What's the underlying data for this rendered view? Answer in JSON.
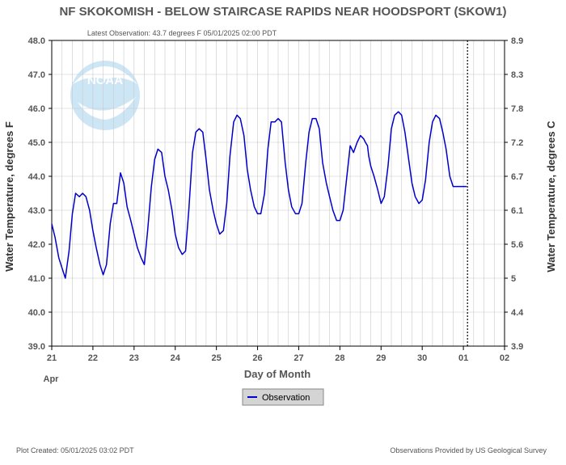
{
  "chart_data": {
    "type": "line",
    "title": "NF SKOKOMISH - BELOW STAIRCASE RAPIDS NEAR HOODSPORT  (SKOW1)",
    "subtitle": "Latest Observation: 43.7 degrees F  05/01/2025 02:00 PDT",
    "xlabel": "Day of Month",
    "ylabel_left": "Water Temperature, degrees F",
    "ylabel_right": "Water Temperature, degrees C",
    "xlim": [
      21,
      32
    ],
    "ylim": [
      39.0,
      48.0
    ],
    "x_ticks": [
      "21",
      "22",
      "23",
      "24",
      "25",
      "26",
      "27",
      "28",
      "29",
      "30",
      "01",
      "02"
    ],
    "x_month_label": "Apr",
    "y_ticks_left": [
      "39.0",
      "40.0",
      "41.0",
      "42.0",
      "43.0",
      "44.0",
      "45.0",
      "46.0",
      "47.0",
      "48.0"
    ],
    "y_ticks_right": [
      {
        "f": 39.0,
        "label": "3.9"
      },
      {
        "f": 40.0,
        "label": "4.4"
      },
      {
        "f": 41.0,
        "label": "5"
      },
      {
        "f": 42.0,
        "label": "5.6"
      },
      {
        "f": 43.0,
        "label": "6.1"
      },
      {
        "f": 44.0,
        "label": "6.7"
      },
      {
        "f": 45.0,
        "label": "7.2"
      },
      {
        "f": 46.0,
        "label": "7.8"
      },
      {
        "f": 47.0,
        "label": "8.3"
      },
      {
        "f": 48.0,
        "label": "8.9"
      }
    ],
    "grid": true,
    "legend_position": "bottom-center",
    "current_time_x": 31.1,
    "series": [
      {
        "name": "Observation",
        "color": "#0000cc",
        "x": [
          21.0,
          21.08,
          21.17,
          21.25,
          21.33,
          21.42,
          21.5,
          21.58,
          21.67,
          21.75,
          21.83,
          21.92,
          22.0,
          22.08,
          22.17,
          22.25,
          22.33,
          22.42,
          22.5,
          22.58,
          22.67,
          22.75,
          22.83,
          22.92,
          23.0,
          23.08,
          23.17,
          23.25,
          23.33,
          23.42,
          23.5,
          23.58,
          23.67,
          23.75,
          23.83,
          23.92,
          24.0,
          24.08,
          24.17,
          24.25,
          24.33,
          24.42,
          24.5,
          24.58,
          24.67,
          24.75,
          24.83,
          24.92,
          25.0,
          25.08,
          25.17,
          25.25,
          25.33,
          25.42,
          25.5,
          25.58,
          25.67,
          25.75,
          25.83,
          25.92,
          26.0,
          26.08,
          26.17,
          26.25,
          26.33,
          26.42,
          26.5,
          26.58,
          26.67,
          26.75,
          26.83,
          26.92,
          27.0,
          27.08,
          27.17,
          27.25,
          27.33,
          27.42,
          27.5,
          27.58,
          27.67,
          27.75,
          27.83,
          27.92,
          28.0,
          28.08,
          28.17,
          28.25,
          28.33,
          28.42,
          28.5,
          28.58,
          28.62,
          28.67,
          28.7,
          28.75,
          28.83,
          28.92,
          29.0,
          29.08,
          29.17,
          29.25,
          29.33,
          29.42,
          29.5,
          29.58,
          29.67,
          29.75,
          29.83,
          29.92,
          30.0,
          30.08,
          30.17,
          30.25,
          30.33,
          30.42,
          30.5,
          30.58,
          30.67,
          30.75,
          30.83,
          30.92,
          31.0,
          31.08
        ],
        "y": [
          42.6,
          42.2,
          41.6,
          41.3,
          41.0,
          41.8,
          42.9,
          43.5,
          43.4,
          43.5,
          43.4,
          43.0,
          42.4,
          41.9,
          41.4,
          41.1,
          41.4,
          42.6,
          43.2,
          43.2,
          44.1,
          43.8,
          43.1,
          42.7,
          42.3,
          41.9,
          41.6,
          41.4,
          42.4,
          43.7,
          44.5,
          44.8,
          44.7,
          44.0,
          43.6,
          43.0,
          42.3,
          41.9,
          41.7,
          41.8,
          43.0,
          44.7,
          45.3,
          45.4,
          45.3,
          44.5,
          43.6,
          43.0,
          42.6,
          42.3,
          42.4,
          43.2,
          44.6,
          45.6,
          45.8,
          45.7,
          45.2,
          44.2,
          43.6,
          43.1,
          42.9,
          42.9,
          43.5,
          44.8,
          45.6,
          45.6,
          45.7,
          45.6,
          44.4,
          43.6,
          43.1,
          42.9,
          42.9,
          43.2,
          44.4,
          45.3,
          45.7,
          45.7,
          45.4,
          44.4,
          43.8,
          43.4,
          43.0,
          42.7,
          42.7,
          43.0,
          44.0,
          44.9,
          44.7,
          45.0,
          45.2,
          45.1,
          45.0,
          44.9,
          44.6,
          44.3,
          44.0,
          43.6,
          43.2,
          43.4,
          44.3,
          45.4,
          45.8,
          45.9,
          45.8,
          45.3,
          44.5,
          43.8,
          43.4,
          43.2,
          43.3,
          43.9,
          45.0,
          45.6,
          45.8,
          45.7,
          45.3,
          44.8,
          44.0,
          43.7,
          43.7,
          43.7,
          43.7,
          43.7
        ]
      }
    ]
  },
  "footer": {
    "left": "Plot Created: 05/01/2025 03:02 PDT",
    "right": "Observations Provided by US Geological Survey"
  },
  "logo": {
    "text": "NOAA",
    "color": "#0a6eb4"
  },
  "colors": {
    "background": "#ffffff",
    "grid": "#c8c8c8",
    "text": "#555555",
    "line": "#0000cc",
    "legend_bg": "#d4d4d4"
  }
}
